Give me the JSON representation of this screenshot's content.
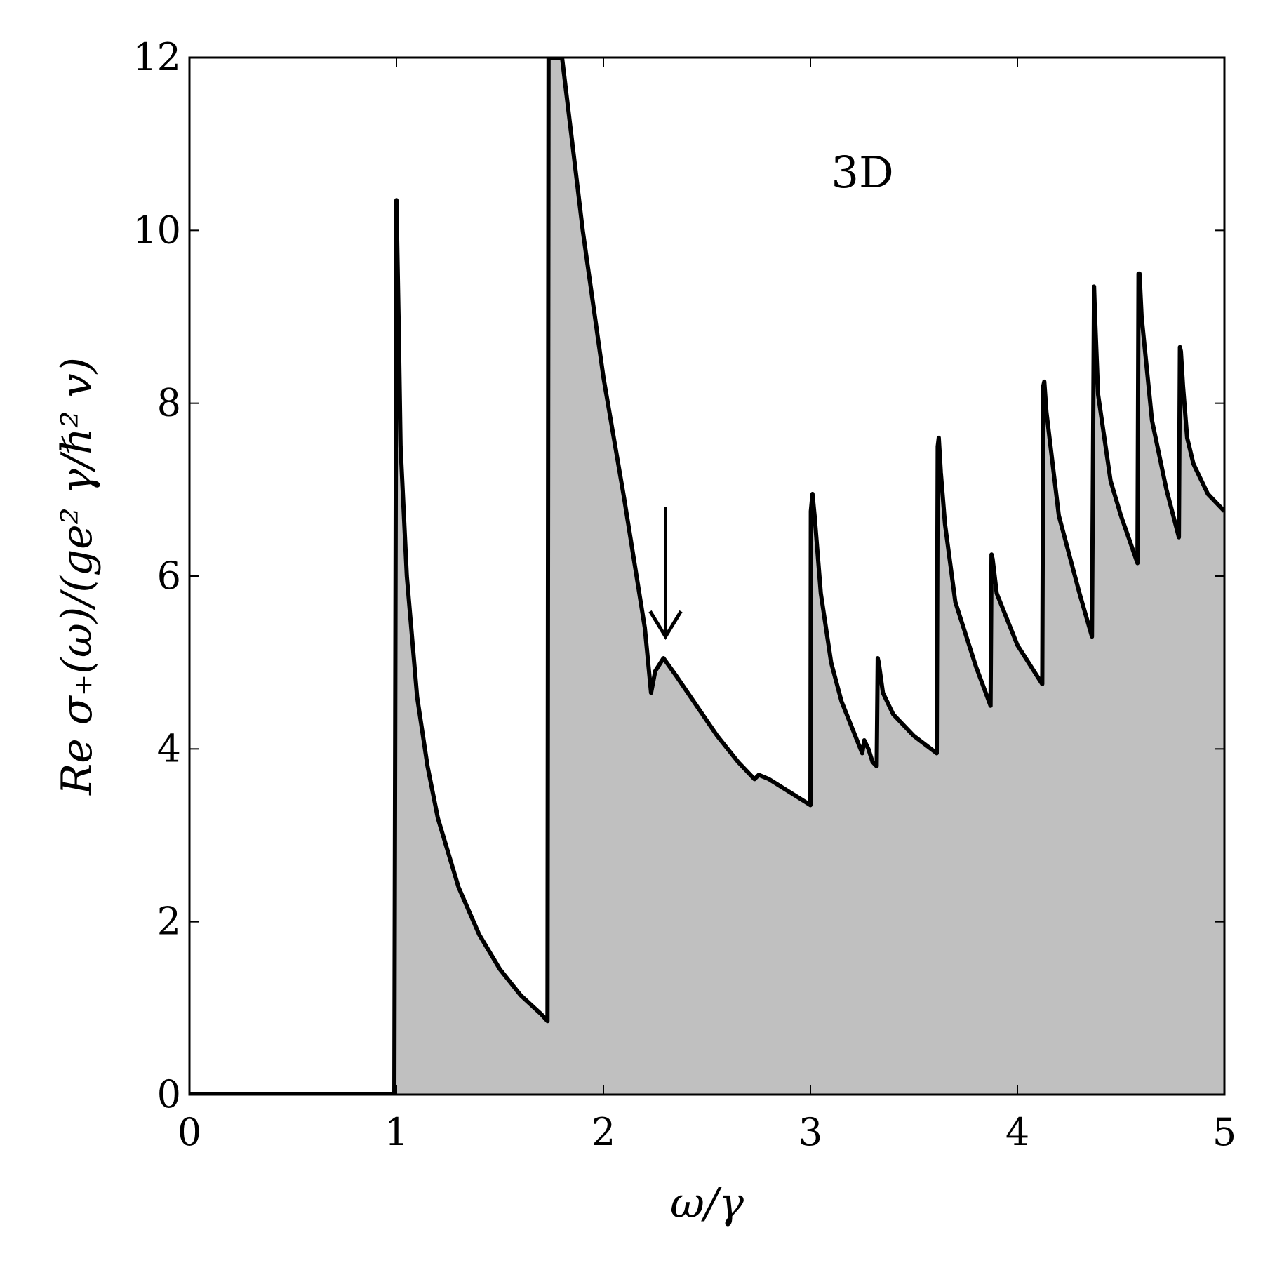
{
  "chart_data": {
    "type": "area",
    "title": "",
    "xlabel": "ω/γ",
    "ylabel": "Re σ₊(ω)/(ge² γ/ℏ² v)",
    "xlim": [
      0,
      5
    ],
    "ylim": [
      0,
      12
    ],
    "xticks": [
      0,
      1,
      2,
      3,
      4,
      5
    ],
    "yticks": [
      0,
      2,
      4,
      6,
      8,
      10,
      12
    ],
    "xtick_labels": [
      "0",
      "1",
      "2",
      "3",
      "4",
      "5"
    ],
    "ytick_labels": [
      "0",
      "2",
      "4",
      "6",
      "8",
      "10",
      "12"
    ],
    "grid": false,
    "legend": "none",
    "colors": {
      "line": "#000000",
      "fill": "#c0c0c0"
    },
    "annotations": [
      {
        "text": "3D",
        "x": 3.1,
        "y": 10.5
      },
      {
        "type": "arrow",
        "x": 2.3,
        "y_from": 6.8,
        "y_to": 5.3
      }
    ],
    "series": [
      {
        "x": [
          0,
          0.99,
          1.0,
          1.01,
          1.02,
          1.05,
          1.1,
          1.15,
          1.2,
          1.3,
          1.4,
          1.5,
          1.6,
          1.7,
          1.73,
          1.735,
          1.75,
          1.8,
          1.85,
          1.9,
          2.0,
          2.1,
          2.2,
          2.23,
          2.25,
          2.29,
          2.35,
          2.45,
          2.55,
          2.65,
          2.73,
          2.75,
          2.8,
          2.9,
          3.0,
          3.002,
          3.01,
          3.02,
          3.05,
          3.1,
          3.15,
          3.2,
          3.25,
          3.26,
          3.28,
          3.3,
          3.32,
          3.325,
          3.33,
          3.35,
          3.4,
          3.5,
          3.61,
          3.615,
          3.62,
          3.63,
          3.65,
          3.7,
          3.8,
          3.87,
          3.875,
          3.88,
          3.9,
          4.0,
          4.12,
          4.125,
          4.13,
          4.14,
          4.2,
          4.3,
          4.36,
          4.365,
          4.37,
          4.375,
          4.39,
          4.45,
          4.5,
          4.58,
          4.585,
          4.59,
          4.6,
          4.65,
          4.72,
          4.78,
          4.785,
          4.79,
          4.8,
          4.82,
          4.85,
          4.92,
          5.0
        ],
        "y": [
          0,
          0,
          10.35,
          9.0,
          7.5,
          6.0,
          4.6,
          3.8,
          3.2,
          2.4,
          1.85,
          1.45,
          1.15,
          0.93,
          0.85,
          12.0,
          12.0,
          12.0,
          11.0,
          10.0,
          8.3,
          6.9,
          5.4,
          4.65,
          4.9,
          5.05,
          4.85,
          4.5,
          4.15,
          3.85,
          3.65,
          3.7,
          3.65,
          3.5,
          3.35,
          6.75,
          6.95,
          6.7,
          5.8,
          5.0,
          4.55,
          4.25,
          3.95,
          4.1,
          4.0,
          3.85,
          3.8,
          5.05,
          5.0,
          4.65,
          4.4,
          4.15,
          3.95,
          7.5,
          7.6,
          7.2,
          6.6,
          5.7,
          4.95,
          4.5,
          6.25,
          6.2,
          5.8,
          5.2,
          4.75,
          8.2,
          8.25,
          7.9,
          6.7,
          5.8,
          5.3,
          7.35,
          9.35,
          9.0,
          8.1,
          7.1,
          6.7,
          6.15,
          9.5,
          9.5,
          9.0,
          7.8,
          7.0,
          6.45,
          8.65,
          8.6,
          8.2,
          7.6,
          7.3,
          6.95,
          6.75
        ]
      }
    ]
  }
}
